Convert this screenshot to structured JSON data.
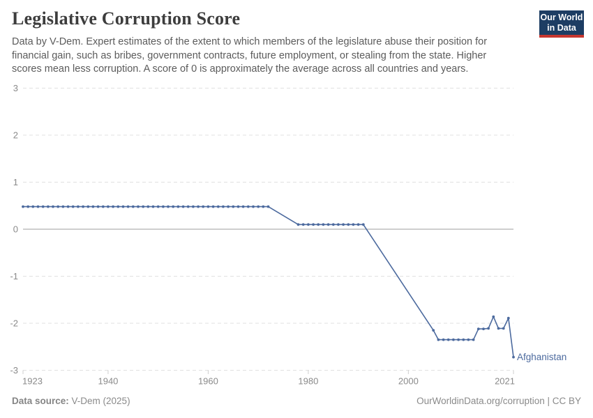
{
  "header": {
    "title": "Legislative Corruption Score",
    "subtitle_lines": [
      "Data by V-Dem. Expert estimates of the extent to which members of the legislature abuse their position for",
      "financial gain, such as bribes, government contracts, future employment, or stealing from the state. Higher",
      "scores mean less corruption. A score of 0 is approximately the average across all countries and years."
    ],
    "logo": {
      "line1": "Our World",
      "line2": "in Data"
    }
  },
  "chart_data": {
    "type": "line",
    "title": "Legislative Corruption Score",
    "xlabel": "",
    "ylabel": "",
    "xlim": [
      1923,
      2021
    ],
    "ylim": [
      -3,
      3
    ],
    "yticks": [
      3,
      2,
      1,
      0,
      -1,
      -2,
      -3
    ],
    "xticks": [
      1923,
      1940,
      1960,
      1980,
      2000,
      2021
    ],
    "grid": "horizontal-dashed",
    "zero_line": true,
    "legend_position": "end-of-line-label",
    "series": [
      {
        "name": "Afghanistan",
        "color": "#4c6a9e",
        "points": [
          [
            1923,
            0.48
          ],
          [
            1924,
            0.48
          ],
          [
            1925,
            0.48
          ],
          [
            1926,
            0.48
          ],
          [
            1927,
            0.48
          ],
          [
            1928,
            0.48
          ],
          [
            1929,
            0.48
          ],
          [
            1930,
            0.48
          ],
          [
            1931,
            0.48
          ],
          [
            1932,
            0.48
          ],
          [
            1933,
            0.48
          ],
          [
            1934,
            0.48
          ],
          [
            1935,
            0.48
          ],
          [
            1936,
            0.48
          ],
          [
            1937,
            0.48
          ],
          [
            1938,
            0.48
          ],
          [
            1939,
            0.48
          ],
          [
            1940,
            0.48
          ],
          [
            1941,
            0.48
          ],
          [
            1942,
            0.48
          ],
          [
            1943,
            0.48
          ],
          [
            1944,
            0.48
          ],
          [
            1945,
            0.48
          ],
          [
            1946,
            0.48
          ],
          [
            1947,
            0.48
          ],
          [
            1948,
            0.48
          ],
          [
            1949,
            0.48
          ],
          [
            1950,
            0.48
          ],
          [
            1951,
            0.48
          ],
          [
            1952,
            0.48
          ],
          [
            1953,
            0.48
          ],
          [
            1954,
            0.48
          ],
          [
            1955,
            0.48
          ],
          [
            1956,
            0.48
          ],
          [
            1957,
            0.48
          ],
          [
            1958,
            0.48
          ],
          [
            1959,
            0.48
          ],
          [
            1960,
            0.48
          ],
          [
            1961,
            0.48
          ],
          [
            1962,
            0.48
          ],
          [
            1963,
            0.48
          ],
          [
            1964,
            0.48
          ],
          [
            1965,
            0.48
          ],
          [
            1966,
            0.48
          ],
          [
            1967,
            0.48
          ],
          [
            1968,
            0.48
          ],
          [
            1969,
            0.48
          ],
          [
            1970,
            0.48
          ],
          [
            1971,
            0.48
          ],
          [
            1972,
            0.48
          ],
          [
            1978,
            0.1
          ],
          [
            1979,
            0.1
          ],
          [
            1980,
            0.1
          ],
          [
            1981,
            0.1
          ],
          [
            1982,
            0.1
          ],
          [
            1983,
            0.1
          ],
          [
            1984,
            0.1
          ],
          [
            1985,
            0.1
          ],
          [
            1986,
            0.1
          ],
          [
            1987,
            0.1
          ],
          [
            1988,
            0.1
          ],
          [
            1989,
            0.1
          ],
          [
            1990,
            0.1
          ],
          [
            1991,
            0.1
          ],
          [
            2005,
            -2.15
          ],
          [
            2006,
            -2.35
          ],
          [
            2007,
            -2.35
          ],
          [
            2008,
            -2.35
          ],
          [
            2009,
            -2.35
          ],
          [
            2010,
            -2.35
          ],
          [
            2011,
            -2.35
          ],
          [
            2012,
            -2.35
          ],
          [
            2013,
            -2.35
          ],
          [
            2014,
            -2.12
          ],
          [
            2015,
            -2.12
          ],
          [
            2016,
            -2.11
          ],
          [
            2017,
            -1.86
          ],
          [
            2018,
            -2.11
          ],
          [
            2019,
            -2.11
          ],
          [
            2020,
            -1.89
          ],
          [
            2021,
            -2.72
          ]
        ]
      }
    ],
    "end_label": "Afghanistan"
  },
  "footer": {
    "source_label": "Data source:",
    "source_value": " V-Dem (2025)",
    "right_text": "OurWorldinData.org/corruption | CC BY"
  },
  "colors": {
    "line": "#4c6a9e",
    "grid": "#e0e0e0",
    "zero_line": "#9e9e9e",
    "axis_text": "#8a8a8a",
    "tick_mark": "#cfcfcf",
    "logo_bg": "#1d3d63",
    "logo_accent": "#c7362f"
  }
}
